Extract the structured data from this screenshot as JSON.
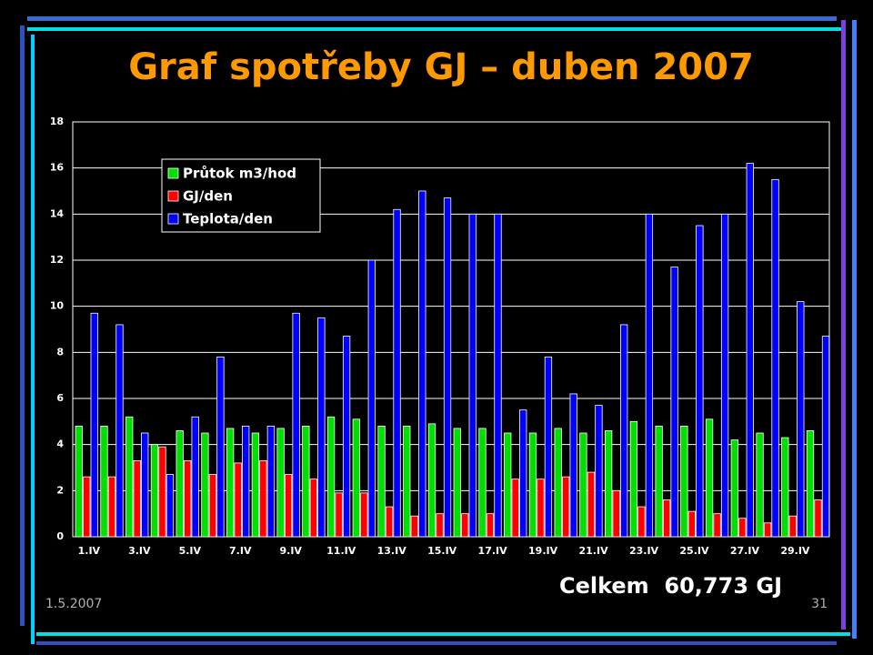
{
  "title": "Graf spotřeby GJ – duben 2007",
  "total": "Celkem  60,773 GJ",
  "date": "1.5.2007",
  "page": "31",
  "chart_data": {
    "type": "bar",
    "categories": [
      "1.IV",
      null,
      "3.IV",
      null,
      "5.IV",
      null,
      "7.IV",
      null,
      "9.IV",
      null,
      "11.IV",
      null,
      "13.IV",
      null,
      "15.IV",
      null,
      "17.IV",
      null,
      "19.IV",
      null,
      "21.IV",
      null,
      "23.IV",
      null,
      "25.IV",
      null,
      "27.IV",
      null,
      "29.IV",
      null
    ],
    "series": [
      {
        "name": "Průtok m3/hod",
        "color": "#00e000",
        "values": [
          4.8,
          4.8,
          5.2,
          4.0,
          4.6,
          4.5,
          4.7,
          4.5,
          4.7,
          4.8,
          5.2,
          5.1,
          4.8,
          4.8,
          4.9,
          4.7,
          4.7,
          4.5,
          4.5,
          4.7,
          4.5,
          4.6,
          5.0,
          4.8,
          4.8,
          5.1,
          4.2,
          4.5,
          4.3,
          4.6
        ]
      },
      {
        "name": "GJ/den",
        "color": "#ff0000",
        "values": [
          2.6,
          2.6,
          3.3,
          3.9,
          3.3,
          2.7,
          3.2,
          3.3,
          2.7,
          2.5,
          1.9,
          1.9,
          1.3,
          0.9,
          1.0,
          1.0,
          1.0,
          2.5,
          2.5,
          2.6,
          2.8,
          2.0,
          1.3,
          1.6,
          1.1,
          1.0,
          0.8,
          0.6,
          0.9,
          1.6
        ]
      },
      {
        "name": "Teplota/den",
        "color": "#0000ff",
        "values": [
          9.7,
          9.2,
          4.5,
          2.7,
          5.2,
          7.8,
          4.8,
          4.8,
          9.7,
          9.5,
          8.7,
          12.0,
          14.2,
          15.0,
          14.7,
          14.0,
          14.0,
          5.5,
          7.8,
          6.2,
          5.7,
          9.2,
          14.0,
          11.7,
          13.5,
          14.0,
          16.2,
          15.5,
          10.2,
          8.7
        ]
      }
    ],
    "ylim": [
      0,
      18
    ],
    "yticks": [
      0,
      2,
      4,
      6,
      8,
      10,
      12,
      14,
      16,
      18
    ],
    "grid": true
  }
}
